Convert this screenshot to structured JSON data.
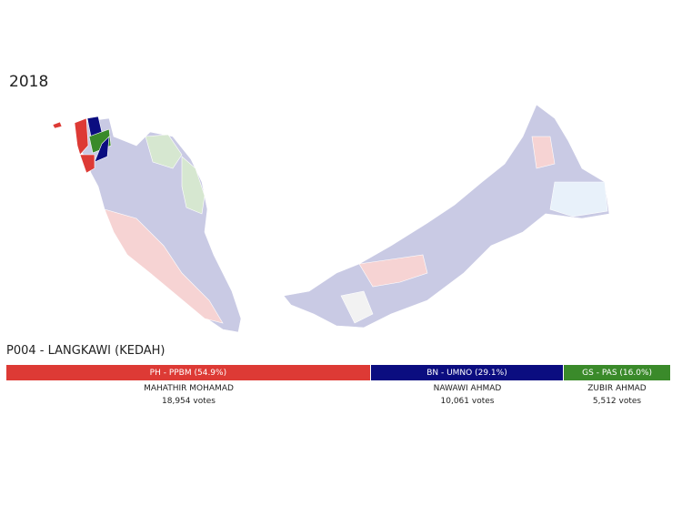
{
  "year": "2018",
  "seat": {
    "title": "P004 - LANGKAWI (KEDAH)"
  },
  "colors": {
    "PH": "#dd3a35",
    "BN": "#0b0d80",
    "GS": "#3a8a2a",
    "base": "#c9cae4",
    "ph_light": "#f6d3d3",
    "gs_light": "#d6e7d0"
  },
  "results": [
    {
      "label": "PH - PPBM (54.9%)",
      "party": "PH",
      "share": 54.9,
      "candidate": "MAHATHIR MOHAMAD",
      "votes": "18,954 votes"
    },
    {
      "label": "BN - UMNO (29.1%)",
      "party": "BN",
      "share": 29.1,
      "candidate": "NAWAWI AHMAD",
      "votes": "10,061 votes"
    },
    {
      "label": "GS - PAS (16.0%)",
      "party": "GS",
      "share": 16.0,
      "candidate": "ZUBIR AHMAD",
      "votes": "5,512 votes"
    }
  ]
}
